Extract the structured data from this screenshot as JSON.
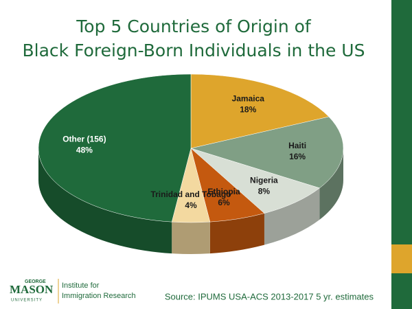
{
  "chart_data": {
    "type": "pie",
    "title": [
      "Top 5 Countries of Origin of",
      "Black Foreign-Born Individuals in the US"
    ],
    "categories": [
      "Jamaica",
      "Haiti",
      "Nigeria",
      "Ethiopia",
      "Trinidad and Tobago",
      "Other (156)"
    ],
    "values": [
      18,
      16,
      8,
      6,
      4,
      48
    ],
    "value_labels": [
      "18%",
      "16%",
      "8%",
      "6%",
      "4%",
      "48%"
    ],
    "colors": [
      "#dea52c",
      "#809f85",
      "#d8dfd5",
      "#c4590f",
      "#f3d9a0",
      "#1f6a3b"
    ],
    "source": "Source: IPUMS USA-ACS 2013-2017  5 yr. estimates"
  },
  "logo": {
    "top": "GEORGE",
    "name": "MASON",
    "bottom": "UNIVERSITY",
    "institute": [
      "Institute for",
      "Immigration Research"
    ]
  }
}
